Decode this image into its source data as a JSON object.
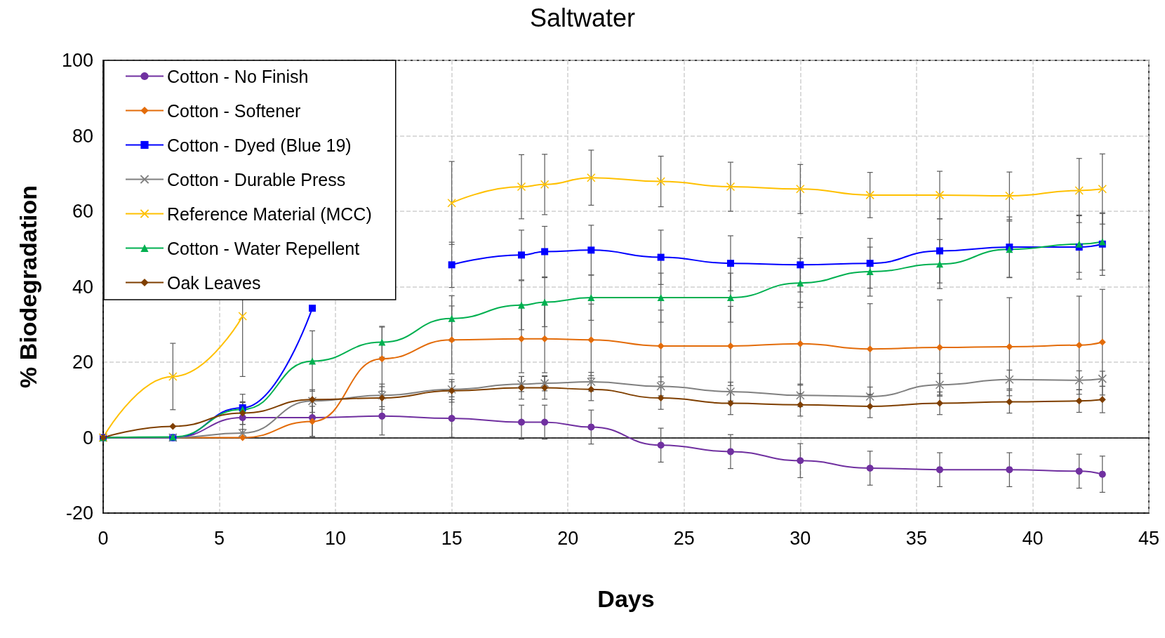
{
  "chart_data": {
    "type": "line",
    "title": "Saltwater",
    "xlabel": "Days",
    "ylabel": "% Biodegradation",
    "x": [
      0,
      3,
      6,
      9,
      12,
      15,
      18,
      19,
      21,
      24,
      27,
      30,
      33,
      36,
      39,
      42,
      43
    ],
    "xlim": [
      0,
      45
    ],
    "xticks": [
      0,
      5,
      10,
      15,
      20,
      25,
      30,
      35,
      40,
      45
    ],
    "ylim": [
      -20,
      100
    ],
    "yticks": [
      -20,
      0,
      20,
      40,
      60,
      80,
      100
    ],
    "grid": true,
    "legend": "top left",
    "series": [
      {
        "name": "Cotton - No Finish",
        "color": "#7030a0",
        "marker": "circle",
        "values": [
          0,
          0,
          5.3,
          5.3,
          5.7,
          5.1,
          4.1,
          4.1,
          2.8,
          -2,
          -3.7,
          -6.1,
          -8.1,
          -8.5,
          -8.5,
          -8.9,
          -9.7
        ],
        "errors": [
          null,
          null,
          4,
          5,
          5,
          5,
          4.5,
          4.5,
          4.5,
          4.5,
          4.5,
          4.5,
          4.5,
          4.5,
          4.5,
          4.5,
          4.8
        ]
      },
      {
        "name": "Cotton - Softener",
        "color": "#e36c0a",
        "marker": "diamond",
        "values": [
          0,
          0,
          0,
          4.3,
          20.9,
          25.9,
          26.2,
          26.2,
          25.9,
          24.3,
          24.3,
          24.9,
          23.5,
          23.9,
          24.1,
          24.5,
          25.3
        ],
        "errors": [
          null,
          null,
          null,
          4,
          8.6,
          9,
          9,
          9,
          9.5,
          9.5,
          10.5,
          11,
          12,
          12.6,
          13,
          13,
          14
        ]
      },
      {
        "name": "Cotton - Dyed (Blue 19)",
        "color": "#0000ff",
        "marker": "square",
        "values": [
          0,
          0,
          7.9,
          34.3,
          null,
          45.8,
          48.4,
          49.3,
          49.7,
          47.8,
          46.2,
          45.8,
          46.2,
          49.5,
          50.5,
          50.5,
          51.3
        ],
        "errors": [
          null,
          null,
          null,
          null,
          null,
          6,
          6.6,
          6.7,
          6.6,
          7.2,
          7.3,
          7.2,
          6.6,
          8.5,
          8,
          8.5,
          8.3
        ]
      },
      {
        "name": "Cotton - Durable Press",
        "color": "#808080",
        "marker": "cross",
        "values": [
          0,
          0,
          1.2,
          9.7,
          11.2,
          12.8,
          14.2,
          14.4,
          14.8,
          13.6,
          12.2,
          11.2,
          10.9,
          14,
          15.4,
          15.2,
          15.6
        ],
        "errors": [
          null,
          null,
          1,
          3,
          3,
          2,
          2,
          2,
          2.5,
          2.5,
          2.5,
          3,
          2.5,
          3,
          2.5,
          2.5,
          2
        ]
      },
      {
        "name": "Reference Material (MCC)",
        "color": "#ffc000",
        "marker": "cross",
        "values": [
          0,
          16.2,
          32.2,
          null,
          null,
          62.2,
          66.5,
          67.1,
          68.9,
          67.9,
          66.5,
          65.9,
          64.3,
          64.3,
          64.1,
          65.5,
          65.9
        ],
        "errors": [
          null,
          8.8,
          16,
          null,
          null,
          11,
          8.5,
          8,
          7.3,
          6.7,
          6.5,
          6.5,
          6,
          6.3,
          6.3,
          8.5,
          9.3
        ]
      },
      {
        "name": "Cotton - Water Repellent",
        "color": "#00b050",
        "marker": "triangle",
        "values": [
          0,
          0.2,
          7.5,
          20.3,
          25.3,
          31.6,
          35.1,
          35.9,
          37.1,
          37.1,
          37.1,
          41,
          44,
          46,
          49.9,
          51.3,
          51.9
        ],
        "errors": [
          null,
          null,
          4,
          8,
          4,
          6,
          6.5,
          6.5,
          6,
          6.5,
          6.5,
          6.5,
          6.5,
          6.5,
          7.5,
          7.5,
          7.5
        ]
      },
      {
        "name": "Oak Leaves",
        "color": "#7f3f00",
        "marker": "diamond",
        "values": [
          0,
          3,
          6.5,
          10.1,
          10.5,
          12.4,
          13.2,
          13.2,
          12.8,
          10.5,
          9.1,
          8.7,
          8.3,
          9.1,
          9.5,
          9.7,
          10.1
        ],
        "errors": [
          null,
          null,
          3,
          null,
          3,
          3,
          3,
          3,
          3,
          3,
          3,
          3,
          3,
          3,
          3,
          3,
          3.5
        ]
      }
    ]
  }
}
